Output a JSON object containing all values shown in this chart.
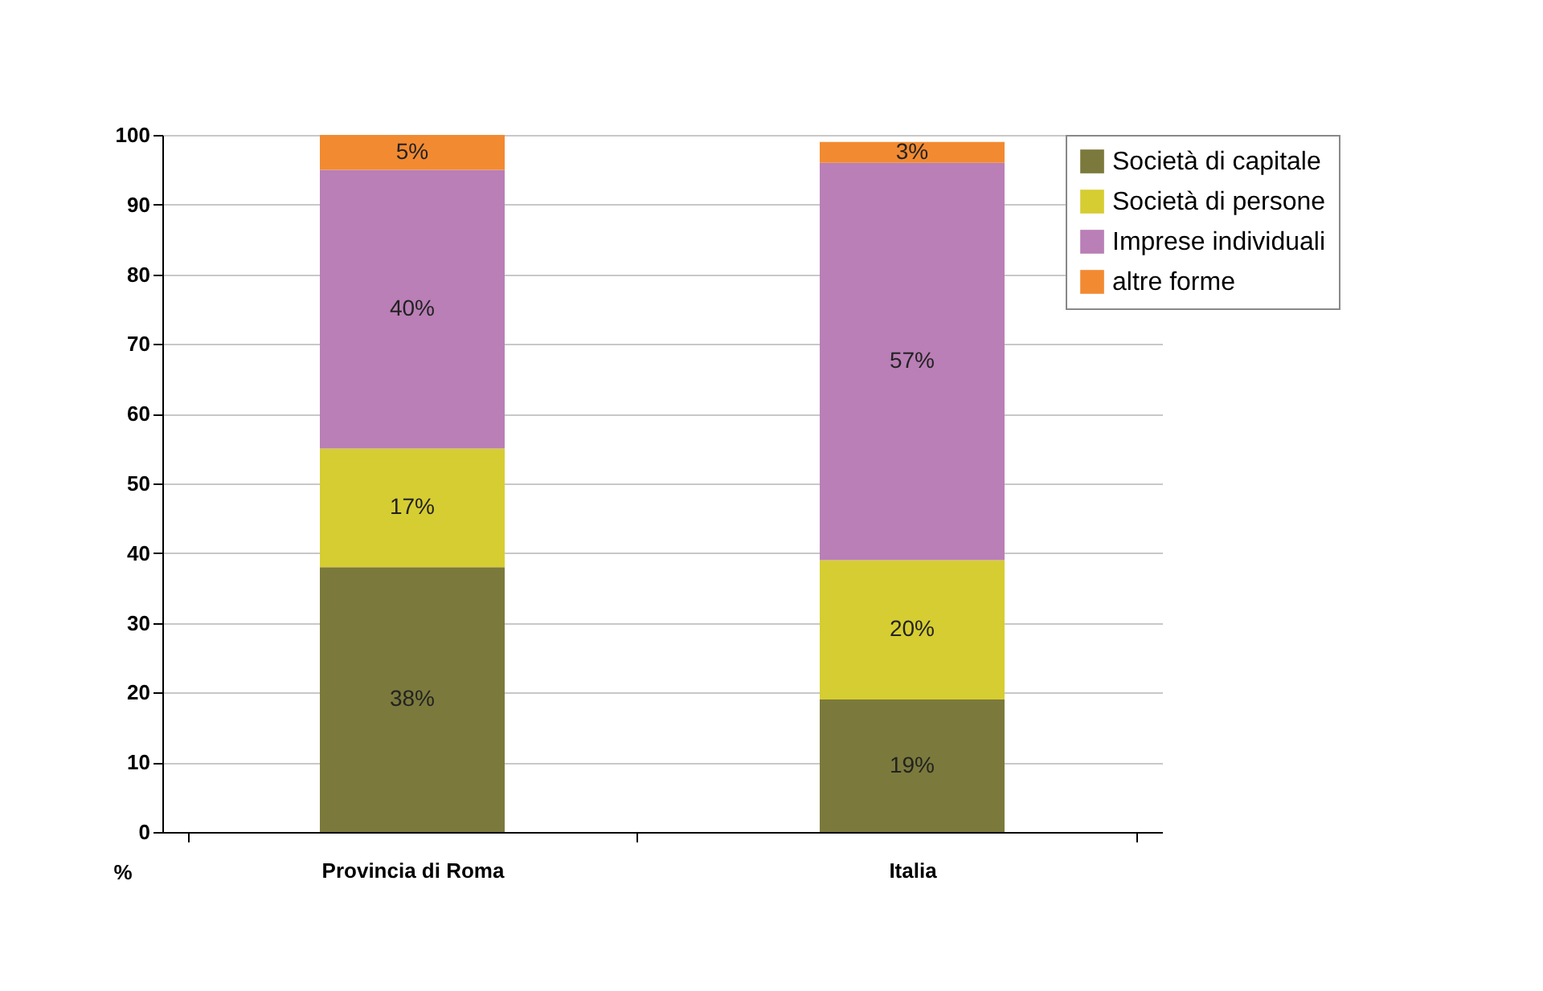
{
  "chart_data": {
    "type": "bar",
    "stacked": true,
    "ylabel": "%",
    "categories": [
      "Provincia di Roma",
      "Italia"
    ],
    "series": [
      {
        "name": "Società di capitale",
        "color": "#7b7a3c",
        "values": [
          38,
          19
        ],
        "value_labels": [
          "38%",
          "19%"
        ]
      },
      {
        "name": "Società di persone",
        "color": "#d6cd32",
        "values": [
          17,
          20
        ],
        "value_labels": [
          "17%",
          "20%"
        ]
      },
      {
        "name": "Imprese individuali",
        "color": "#b97fb6",
        "values": [
          40,
          57
        ],
        "value_labels": [
          "40%",
          "57%"
        ]
      },
      {
        "name": "altre forme",
        "color": "#f28a32",
        "values": [
          5,
          3
        ],
        "value_labels": [
          "5%",
          "3%"
        ]
      }
    ],
    "ylim": [
      0,
      100
    ],
    "yticks": [
      0,
      10,
      20,
      30,
      40,
      50,
      60,
      70,
      80,
      90,
      100
    ],
    "grid": "y",
    "legend": "top right"
  }
}
